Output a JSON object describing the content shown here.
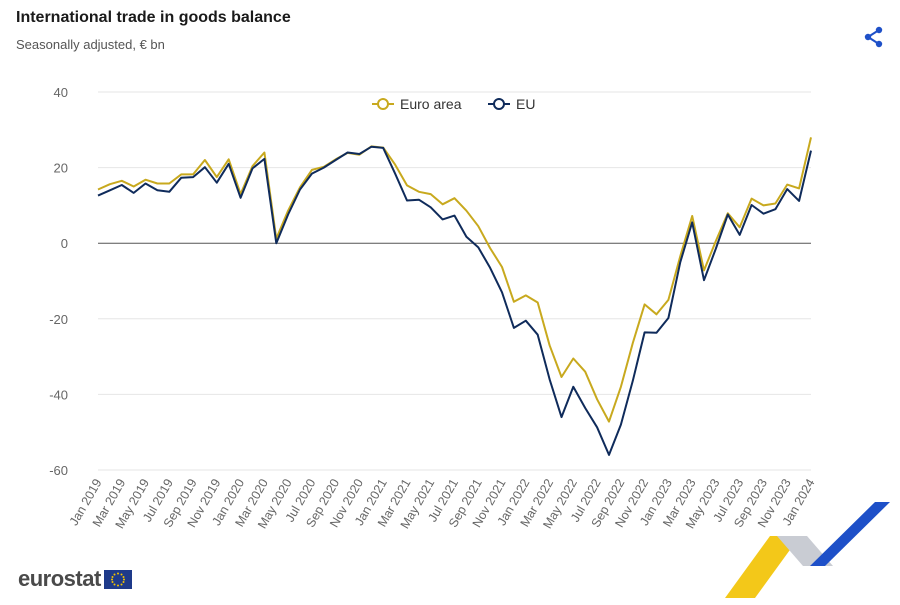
{
  "header": {
    "title": "International trade in goods balance",
    "subtitle": "Seasonally adjusted, € bn"
  },
  "icons": {
    "share": "share-icon",
    "flag": "eu-flag-icon"
  },
  "footer": {
    "logo_text": "eurostat"
  },
  "colors": {
    "euro_area": "#C8A91E",
    "eu": "#0F2B5B",
    "grid": "#e6e6e6",
    "axis_text": "#666666",
    "accent_blue": "#1E50C8",
    "accent_yellow": "#F2C200"
  },
  "chart_data": {
    "type": "line",
    "title": "International trade in goods balance",
    "subtitle": "Seasonally adjusted, € bn",
    "ylim": [
      -60,
      40
    ],
    "yticks": [
      40,
      20,
      0,
      -20,
      -40,
      -60
    ],
    "grid": true,
    "legend": "top-center",
    "x": [
      "Jan 2019",
      "Feb 2019",
      "Mar 2019",
      "Apr 2019",
      "May 2019",
      "Jun 2019",
      "Jul 2019",
      "Aug 2019",
      "Sep 2019",
      "Oct 2019",
      "Nov 2019",
      "Dec 2019",
      "Jan 2020",
      "Feb 2020",
      "Mar 2020",
      "Apr 2020",
      "May 2020",
      "Jun 2020",
      "Jul 2020",
      "Aug 2020",
      "Sep 2020",
      "Oct 2020",
      "Nov 2020",
      "Dec 2020",
      "Jan 2021",
      "Feb 2021",
      "Mar 2021",
      "Apr 2021",
      "May 2021",
      "Jun 2021",
      "Jul 2021",
      "Aug 2021",
      "Sep 2021",
      "Oct 2021",
      "Nov 2021",
      "Dec 2021",
      "Jan 2022",
      "Feb 2022",
      "Mar 2022",
      "Apr 2022",
      "May 2022",
      "Jun 2022",
      "Jul 2022",
      "Aug 2022",
      "Sep 2022",
      "Oct 2022",
      "Nov 2022",
      "Dec 2022",
      "Jan 2023",
      "Feb 2023",
      "Mar 2023",
      "Apr 2023",
      "May 2023",
      "Jun 2023",
      "Jul 2023",
      "Aug 2023",
      "Sep 2023",
      "Oct 2023",
      "Nov 2023",
      "Dec 2023",
      "Jan 2024"
    ],
    "xtick_labels": [
      "Jan 2019",
      "Mar 2019",
      "May 2019",
      "Jul 2019",
      "Sep 2019",
      "Nov 2019",
      "Jan 2020",
      "Mar 2020",
      "May 2020",
      "Jul 2020",
      "Sep 2020",
      "Nov 2020",
      "Jan 2021",
      "Mar 2021",
      "May 2021",
      "Jul 2021",
      "Sep 2021",
      "Nov 2021",
      "Jan 2022",
      "Mar 2022",
      "May 2022",
      "Jul 2022",
      "Sep 2022",
      "Nov 2022",
      "Jan 2023",
      "Mar 2023",
      "May 2023",
      "Jul 2023",
      "Sep 2023",
      "Nov 2023",
      "Jan 2024"
    ],
    "series": [
      {
        "name": "Euro area",
        "color": "#C8A91E",
        "values": [
          14.2,
          15.6,
          16.5,
          15.0,
          16.8,
          15.8,
          15.8,
          18.2,
          18.2,
          22.0,
          17.5,
          22.2,
          13.0,
          20.4,
          24.0,
          1.2,
          8.6,
          14.8,
          19.4,
          20.2,
          22.2,
          23.9,
          23.4,
          25.6,
          25.3,
          20.8,
          15.3,
          13.6,
          13.0,
          10.3,
          11.9,
          8.6,
          4.5,
          -1.3,
          -6.3,
          -15.5,
          -13.8,
          -15.7,
          -27.0,
          -35.4,
          -30.5,
          -34.0,
          -41.3,
          -47.2,
          -38.0,
          -26.4,
          -16.2,
          -18.8,
          -15.0,
          -3.4,
          7.2,
          -7.2,
          0.6,
          7.9,
          4.2,
          11.8,
          10.0,
          10.5,
          15.5,
          14.5,
          28.0
        ]
      },
      {
        "name": "EU",
        "color": "#0F2B5B",
        "values": [
          12.6,
          14.0,
          15.4,
          13.3,
          15.8,
          14.0,
          13.6,
          17.3,
          17.5,
          20.1,
          16.0,
          21.0,
          12.0,
          19.8,
          22.3,
          0.0,
          7.6,
          14.2,
          18.4,
          20.0,
          22.0,
          24.0,
          23.6,
          25.5,
          25.2,
          18.4,
          11.3,
          11.5,
          9.5,
          6.3,
          7.3,
          1.7,
          -1.1,
          -6.5,
          -13.0,
          -22.4,
          -20.5,
          -24.2,
          -36.0,
          -46.0,
          -38.0,
          -43.6,
          -48.7,
          -56.0,
          -48.0,
          -36.4,
          -23.6,
          -23.7,
          -19.8,
          -5.0,
          5.5,
          -9.8,
          -1.4,
          7.6,
          2.2,
          10.1,
          7.8,
          9.0,
          14.3,
          11.2,
          24.5
        ]
      }
    ]
  }
}
